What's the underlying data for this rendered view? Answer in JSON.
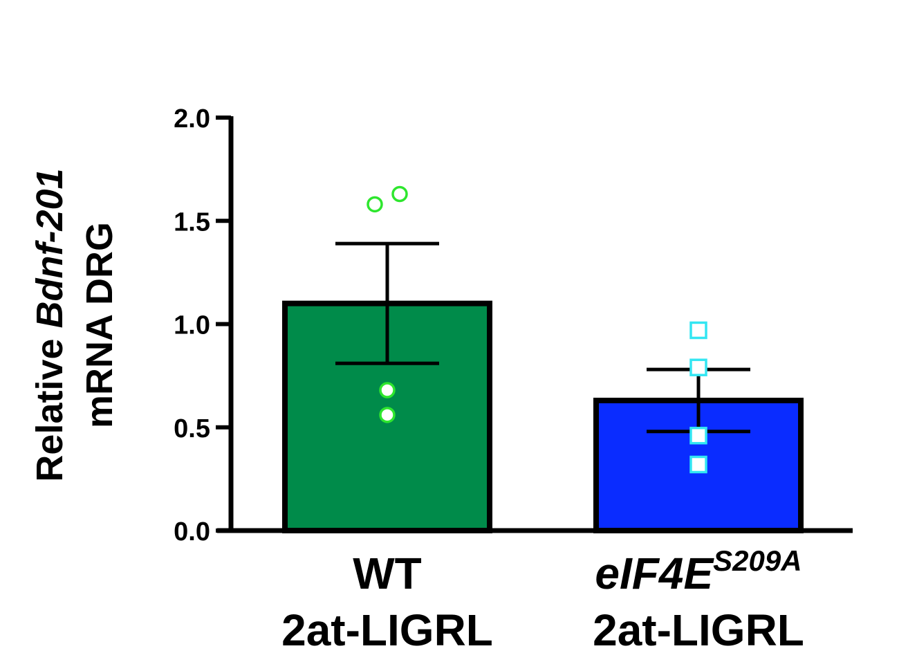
{
  "chart_data": {
    "type": "bar",
    "ylabel": {
      "line1_prefix": "Relative ",
      "line1_gene": "Bdnf-201",
      "line2": "mRNA DRG"
    },
    "ylim": [
      0,
      2.0
    ],
    "yticks": [
      "0.0",
      "0.5",
      "1.0",
      "1.5",
      "2.0"
    ],
    "ytick_values": [
      0,
      0.5,
      1.0,
      1.5,
      2.0
    ],
    "grid": false,
    "groups": [
      {
        "label_line1": "WT",
        "label_line2": "2at-LIGRL",
        "mean": 1.1,
        "sem": 0.29,
        "fill": "#008b4a",
        "marker": "circle",
        "marker_color": "#2ee62e",
        "points": [
          1.58,
          1.63,
          0.68,
          0.56
        ]
      },
      {
        "label_line1_italic": "eIF4E",
        "label_line1_sup": "S209A",
        "label_line2": "2at-LIGRL",
        "mean": 0.63,
        "sem": 0.15,
        "fill": "#0a2cff",
        "marker": "square",
        "marker_color": "#33e6f2",
        "points": [
          0.97,
          0.79,
          0.46,
          0.32
        ]
      }
    ]
  }
}
